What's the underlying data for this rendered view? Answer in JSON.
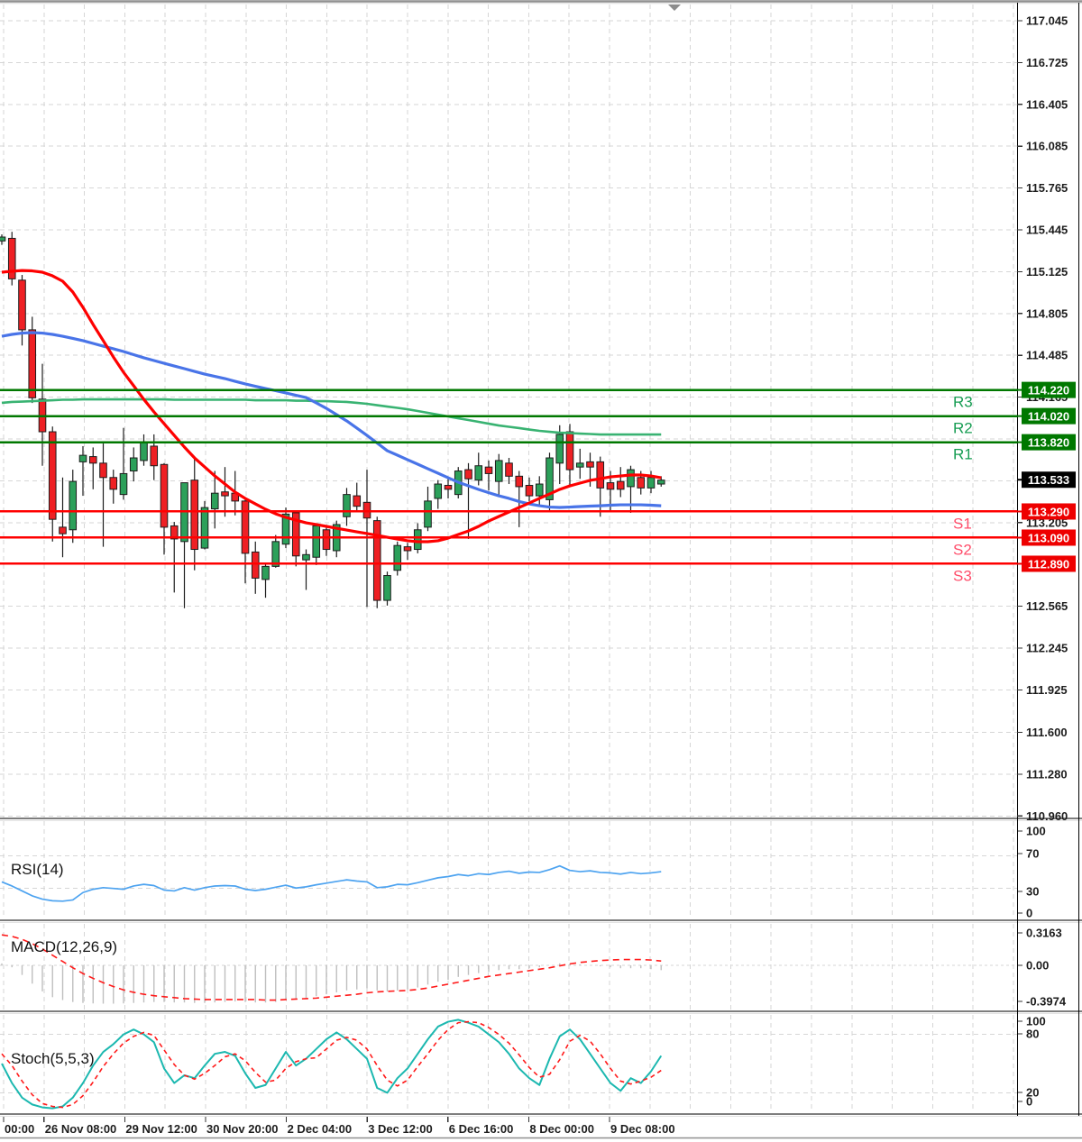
{
  "colors": {
    "background": "#ffffff",
    "grid": "#d6d6d6",
    "bull_candle": "#2ca05a",
    "bear_candle": "#ee2024",
    "candle_outline": "#1d1d1d",
    "ma_fast_red": "#fe0000",
    "ma_slow_blue": "#4974e8",
    "ma_slow_green": "#39b372",
    "resistance_line": "#007800",
    "resistance_label": "#169c52",
    "support_line": "#ff0000",
    "support_label": "#ff4d6a",
    "current_badge": "#000000",
    "resistance_badge": "#007800",
    "support_badge": "#ee0000",
    "rsi_line": "#4da3f0",
    "macd_histogram": "#bfbfbf",
    "macd_signal": "#ff1a1a",
    "stoch_k": "#1cb8b0",
    "stoch_d": "#ff1a1a",
    "axis_text": "#1c1c1c",
    "border": "#8a8a8a"
  },
  "chart_data": {
    "type": "candlestick",
    "title": "",
    "price_axis": {
      "min": 110.0,
      "max": 117.2,
      "grid_prices": [
        117.045,
        116.725,
        116.405,
        116.085,
        115.765,
        115.445,
        115.125,
        114.805,
        114.485,
        114.165,
        113.845,
        113.525,
        113.205,
        112.885,
        112.565,
        112.245,
        111.925,
        111.6,
        111.28,
        110.96
      ],
      "visible_labels": [
        "117.045",
        "116.725",
        "116.405",
        "116.085",
        "115.765",
        "115.445",
        "115.125",
        "114.805",
        "114.485",
        "114.165",
        "113.205",
        "112.565",
        "112.245",
        "111.925",
        "111.600",
        "111.280",
        "110.960"
      ],
      "badges": [
        {
          "text": "114.220",
          "type": "resistance"
        },
        {
          "text": "114.020",
          "type": "resistance"
        },
        {
          "text": "113.820",
          "type": "resistance"
        },
        {
          "text": "113.533",
          "type": "current"
        },
        {
          "text": "113.290",
          "type": "support"
        },
        {
          "text": "113.090",
          "type": "support"
        },
        {
          "text": "112.890",
          "type": "support"
        }
      ]
    },
    "levels": {
      "resistance": [
        {
          "label": "R1",
          "price": 113.82
        },
        {
          "label": "R2",
          "price": 114.02
        },
        {
          "label": "R3",
          "price": 114.22
        }
      ],
      "support": [
        {
          "label": "S1",
          "price": 113.29
        },
        {
          "label": "S2",
          "price": 113.09
        },
        {
          "label": "S3",
          "price": 112.89
        }
      ]
    },
    "current_price": 113.533,
    "time_axis": {
      "labels": [
        "00:00",
        "26 Nov 08:00",
        "29 Nov 12:00",
        "30 Nov 20:00",
        "2 Dec 04:00",
        "3 Dec 12:00",
        "6 Dec 16:00",
        "8 Dec 00:00",
        "9 Dec 08:00"
      ],
      "grid_indices": [
        0,
        1,
        3,
        5,
        7,
        9,
        11,
        13,
        15
      ]
    },
    "candles": [
      [
        115.36,
        115.41,
        115.33,
        115.39
      ],
      [
        115.38,
        115.43,
        115.02,
        115.07
      ],
      [
        115.06,
        115.1,
        114.56,
        114.68
      ],
      [
        114.68,
        114.78,
        114.12,
        114.16
      ],
      [
        114.15,
        114.42,
        113.64,
        113.9
      ],
      [
        113.9,
        113.94,
        113.06,
        113.23
      ],
      [
        113.17,
        113.55,
        112.94,
        113.12
      ],
      [
        113.15,
        113.61,
        113.05,
        113.52
      ],
      [
        113.67,
        113.79,
        113.41,
        113.72
      ],
      [
        113.71,
        113.78,
        113.46,
        113.66
      ],
      [
        113.66,
        113.81,
        113.02,
        113.55
      ],
      [
        113.55,
        113.61,
        113.35,
        113.46
      ],
      [
        113.42,
        113.93,
        113.38,
        113.58
      ],
      [
        113.6,
        113.78,
        113.52,
        113.7
      ],
      [
        113.68,
        113.88,
        113.64,
        113.82
      ],
      [
        113.79,
        113.88,
        113.53,
        113.64
      ],
      [
        113.65,
        113.66,
        112.96,
        113.17
      ],
      [
        113.18,
        113.21,
        112.67,
        113.08
      ],
      [
        113.06,
        113.51,
        112.55,
        113.51
      ],
      [
        113.53,
        113.71,
        112.84,
        113.0
      ],
      [
        113.01,
        113.37,
        113.0,
        113.32
      ],
      [
        113.31,
        113.6,
        113.16,
        113.43
      ],
      [
        113.44,
        113.63,
        113.25,
        113.41
      ],
      [
        113.43,
        113.6,
        113.26,
        113.37
      ],
      [
        113.37,
        113.38,
        112.74,
        112.97
      ],
      [
        112.98,
        113.06,
        112.66,
        112.78
      ],
      [
        112.77,
        112.89,
        112.63,
        112.87
      ],
      [
        112.87,
        113.11,
        112.86,
        113.06
      ],
      [
        113.04,
        113.32,
        113.01,
        113.27
      ],
      [
        113.28,
        113.3,
        112.87,
        112.95
      ],
      [
        112.92,
        113.0,
        112.69,
        112.96
      ],
      [
        112.94,
        113.2,
        112.88,
        113.18
      ],
      [
        113.15,
        113.18,
        112.95,
        113.0
      ],
      [
        112.99,
        113.22,
        112.94,
        113.19
      ],
      [
        113.25,
        113.47,
        113.18,
        113.42
      ],
      [
        113.41,
        113.51,
        113.3,
        113.33
      ],
      [
        113.36,
        113.61,
        112.56,
        113.24
      ],
      [
        113.22,
        113.25,
        112.55,
        112.61
      ],
      [
        112.61,
        112.83,
        112.57,
        112.8
      ],
      [
        112.84,
        113.06,
        112.8,
        113.03
      ],
      [
        113.02,
        113.05,
        112.92,
        112.99
      ],
      [
        113.0,
        113.2,
        112.97,
        113.15
      ],
      [
        113.17,
        113.48,
        113.14,
        113.37
      ],
      [
        113.39,
        113.53,
        113.31,
        113.5
      ],
      [
        113.49,
        113.55,
        113.39,
        113.46
      ],
      [
        113.42,
        113.63,
        113.39,
        113.6
      ],
      [
        113.61,
        113.66,
        113.08,
        113.54
      ],
      [
        113.53,
        113.74,
        113.49,
        113.64
      ],
      [
        113.63,
        113.68,
        113.45,
        113.58
      ],
      [
        113.52,
        113.73,
        113.4,
        113.68
      ],
      [
        113.66,
        113.7,
        113.5,
        113.56
      ],
      [
        113.56,
        113.6,
        113.17,
        113.48
      ],
      [
        113.49,
        113.55,
        113.37,
        113.41
      ],
      [
        113.41,
        113.56,
        113.34,
        113.5
      ],
      [
        113.38,
        113.74,
        113.3,
        113.7
      ],
      [
        113.66,
        113.95,
        113.5,
        113.88
      ],
      [
        113.9,
        113.96,
        113.48,
        113.61
      ],
      [
        113.63,
        113.77,
        113.54,
        113.66
      ],
      [
        113.67,
        113.74,
        113.48,
        113.63
      ],
      [
        113.67,
        113.71,
        113.25,
        113.47
      ],
      [
        113.51,
        113.6,
        113.3,
        113.46
      ],
      [
        113.52,
        113.63,
        113.4,
        113.46
      ],
      [
        113.48,
        113.64,
        113.28,
        113.61
      ],
      [
        113.55,
        113.6,
        113.42,
        113.47
      ],
      [
        113.47,
        113.6,
        113.43,
        113.55
      ],
      [
        113.5,
        113.56,
        113.48,
        113.53
      ]
    ],
    "moving_averages": {
      "fast_red": [
        115.121,
        115.128,
        115.134,
        115.131,
        115.121,
        115.093,
        115.052,
        114.969,
        114.852,
        114.721,
        114.597,
        114.472,
        114.355,
        114.252,
        114.148,
        114.052,
        113.962,
        113.872,
        113.783,
        113.7,
        113.631,
        113.562,
        113.5,
        113.438,
        113.39,
        113.348,
        113.307,
        113.272,
        113.245,
        113.224,
        113.203,
        113.19,
        113.176,
        113.162,
        113.148,
        113.134,
        113.121,
        113.107,
        113.093,
        113.079,
        113.066,
        113.059,
        113.059,
        113.066,
        113.086,
        113.114,
        113.141,
        113.176,
        113.217,
        113.252,
        113.286,
        113.321,
        113.355,
        113.39,
        113.424,
        113.459,
        113.486,
        113.507,
        113.528,
        113.541,
        113.555,
        113.562,
        113.569,
        113.569,
        113.562,
        113.548
      ],
      "slow_blue": [
        114.631,
        114.645,
        114.655,
        114.659,
        114.655,
        114.645,
        114.631,
        114.614,
        114.597,
        114.576,
        114.555,
        114.535,
        114.514,
        114.49,
        114.466,
        114.445,
        114.424,
        114.403,
        114.383,
        114.362,
        114.341,
        114.324,
        114.307,
        114.286,
        114.266,
        114.248,
        114.231,
        114.214,
        114.197,
        114.179,
        114.162,
        114.121,
        114.079,
        114.031,
        113.983,
        113.928,
        113.872,
        113.814,
        113.755,
        113.721,
        113.686,
        113.652,
        113.617,
        113.583,
        113.548,
        113.514,
        113.486,
        113.459,
        113.434,
        113.41,
        113.39,
        113.366,
        113.348,
        113.334,
        113.324,
        113.321,
        113.324,
        113.328,
        113.331,
        113.334,
        113.338,
        113.341,
        113.341,
        113.341,
        113.338,
        113.334
      ],
      "slow_green": [
        114.121,
        114.128,
        114.131,
        114.134,
        114.138,
        114.141,
        114.145,
        114.145,
        114.148,
        114.148,
        114.148,
        114.148,
        114.148,
        114.148,
        114.148,
        114.148,
        114.148,
        114.145,
        114.145,
        114.145,
        114.145,
        114.145,
        114.145,
        114.145,
        114.145,
        114.141,
        114.141,
        114.141,
        114.141,
        114.138,
        114.138,
        114.134,
        114.134,
        114.131,
        114.128,
        114.121,
        114.114,
        114.103,
        114.093,
        114.083,
        114.072,
        114.059,
        114.045,
        114.031,
        114.017,
        114.003,
        113.99,
        113.976,
        113.962,
        113.948,
        113.938,
        113.928,
        113.917,
        113.907,
        113.9,
        113.893,
        113.89,
        113.886,
        113.883,
        113.879,
        113.879,
        113.879,
        113.879,
        113.879,
        113.879,
        113.879
      ]
    },
    "indicators": {
      "rsi": {
        "label": "RSI(14)",
        "axis_labels": [
          "100",
          "70",
          "30",
          "0"
        ],
        "values": [
          38,
          33,
          27,
          21,
          17,
          15,
          14.5,
          16,
          25,
          29,
          31,
          30,
          29,
          33,
          35,
          33.5,
          28,
          27,
          31,
          28,
          31,
          33,
          33.5,
          33,
          29,
          27.5,
          29,
          31.5,
          34,
          30.5,
          32,
          34.5,
          36.5,
          38.5,
          40.5,
          39,
          38,
          31,
          32,
          35,
          34.5,
          37,
          40,
          43,
          44.5,
          47,
          45.5,
          48,
          47,
          49.5,
          51,
          48.5,
          50,
          49.5,
          53,
          57.5,
          52,
          50.5,
          51.5,
          49.5,
          49,
          47.5,
          49.5,
          48,
          49,
          50.5
        ]
      },
      "macd": {
        "label": "MACD(12,26,9)",
        "axis_labels": [
          "0.3163",
          "0.00",
          "-0.3974"
        ],
        "histogram": [
          0.02,
          -0.02,
          -0.1,
          -0.19,
          -0.27,
          -0.33,
          -0.36,
          -0.38,
          -0.39,
          -0.395,
          -0.3974,
          -0.3974,
          -0.395,
          -0.39,
          -0.385,
          -0.38,
          -0.38,
          -0.385,
          -0.385,
          -0.39,
          -0.39,
          -0.385,
          -0.38,
          -0.375,
          -0.38,
          -0.385,
          -0.385,
          -0.38,
          -0.36,
          -0.35,
          -0.34,
          -0.32,
          -0.3,
          -0.28,
          -0.26,
          -0.25,
          -0.24,
          -0.26,
          -0.27,
          -0.26,
          -0.25,
          -0.23,
          -0.2,
          -0.17,
          -0.15,
          -0.12,
          -0.1,
          -0.08,
          -0.07,
          -0.05,
          -0.04,
          -0.04,
          -0.03,
          -0.02,
          0.0,
          0.02,
          0.02,
          0.01,
          0.0,
          -0.01,
          -0.02,
          -0.03,
          -0.03,
          -0.03,
          -0.04,
          -0.05
        ],
        "signal": [
          0.3163,
          0.3,
          0.27,
          0.225,
          0.17,
          0.105,
          0.04,
          -0.025,
          -0.085,
          -0.135,
          -0.18,
          -0.22,
          -0.255,
          -0.28,
          -0.3,
          -0.315,
          -0.325,
          -0.335,
          -0.345,
          -0.35,
          -0.355,
          -0.355,
          -0.355,
          -0.355,
          -0.355,
          -0.355,
          -0.36,
          -0.36,
          -0.355,
          -0.35,
          -0.345,
          -0.34,
          -0.33,
          -0.32,
          -0.31,
          -0.3,
          -0.285,
          -0.275,
          -0.27,
          -0.265,
          -0.26,
          -0.25,
          -0.235,
          -0.215,
          -0.195,
          -0.175,
          -0.155,
          -0.135,
          -0.115,
          -0.1,
          -0.085,
          -0.07,
          -0.055,
          -0.04,
          -0.025,
          -0.005,
          0.015,
          0.03,
          0.04,
          0.05,
          0.055,
          0.06,
          0.06,
          0.06,
          0.055,
          0.045
        ]
      },
      "stoch": {
        "label": "Stoch(5,5,3)",
        "axis_labels": [
          "100",
          "80",
          "20",
          "0"
        ],
        "k": [
          50,
          30,
          15,
          8,
          5,
          4,
          6,
          15,
          30,
          48,
          62,
          70,
          80,
          85,
          80,
          72,
          45,
          30,
          38,
          35,
          48,
          60,
          62,
          58,
          40,
          25,
          28,
          45,
          62,
          48,
          55,
          65,
          75,
          82,
          75,
          65,
          55,
          25,
          20,
          35,
          45,
          60,
          75,
          88,
          93,
          95,
          92,
          88,
          80,
          72,
          60,
          45,
          35,
          28,
          55,
          78,
          85,
          75,
          60,
          45,
          30,
          22,
          35,
          30,
          42,
          58
        ],
        "d": [
          60,
          48,
          32,
          18,
          9,
          6,
          5,
          8,
          17,
          31,
          47,
          60,
          71,
          78,
          82,
          79,
          64,
          49,
          38,
          34,
          40,
          48,
          57,
          60,
          53,
          41,
          31,
          33,
          45,
          52,
          55,
          56,
          65,
          74,
          77,
          74,
          65,
          48,
          33,
          27,
          33,
          47,
          60,
          74,
          85,
          92,
          93,
          92,
          87,
          80,
          71,
          59,
          46,
          36,
          39,
          54,
          73,
          79,
          73,
          60,
          45,
          32,
          29,
          32,
          36,
          43
        ]
      }
    }
  }
}
